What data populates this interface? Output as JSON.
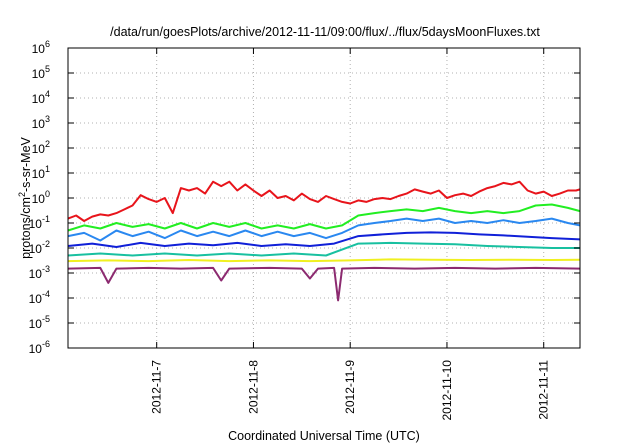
{
  "chart_data": {
    "type": "line",
    "title": "/data/run/goesPlots/archive/2012-11-11/09:00/flux/../flux/5daysMoonFluxes.txt",
    "xlabel": "Coordinated Universal Time (UTC)",
    "ylabel_base": "protons/cm",
    "ylabel_sup": "2",
    "ylabel_rest": "-s-sr-MeV",
    "y_scale": "log",
    "ylim": [
      1e-06,
      1000000.0
    ],
    "xlim": [
      "2012-11-06 02:00",
      "2012-11-11 09:00"
    ],
    "grid": true,
    "legend": "none",
    "x_ticks": [
      {
        "label": "2012-11-7",
        "date": "2012-11-07"
      },
      {
        "label": "2012-11-8",
        "date": "2012-11-08"
      },
      {
        "label": "2012-11-9",
        "date": "2012-11-09"
      },
      {
        "label": "2012-11-10",
        "date": "2012-11-10"
      },
      {
        "label": "2012-11-11",
        "date": "2012-11-11"
      }
    ],
    "y_ticks": [
      {
        "base": "10",
        "exp": "-6",
        "value": 1e-06
      },
      {
        "base": "10",
        "exp": "-5",
        "value": 1e-05
      },
      {
        "base": "10",
        "exp": "-4",
        "value": 0.0001
      },
      {
        "base": "10",
        "exp": "-3",
        "value": 0.001
      },
      {
        "base": "10",
        "exp": "-2",
        "value": 0.01
      },
      {
        "base": "10",
        "exp": "-1",
        "value": 0.1
      },
      {
        "base": "10",
        "exp": "0",
        "value": 1
      },
      {
        "base": "10",
        "exp": "1",
        "value": 10
      },
      {
        "base": "10",
        "exp": "2",
        "value": 100
      },
      {
        "base": "10",
        "exp": "3",
        "value": 1000
      },
      {
        "base": "10",
        "exp": "4",
        "value": 10000
      },
      {
        "base": "10",
        "exp": "5",
        "value": 100000
      },
      {
        "base": "10",
        "exp": "6",
        "value": 1000000
      }
    ],
    "series": [
      {
        "color": "#e8141b",
        "points": [
          [
            "2012-11-06 02:00",
            0.15
          ],
          [
            "2012-11-06 04:00",
            0.2
          ],
          [
            "2012-11-06 06:00",
            0.12
          ],
          [
            "2012-11-06 08:00",
            0.18
          ],
          [
            "2012-11-06 10:00",
            0.22
          ],
          [
            "2012-11-06 12:00",
            0.2
          ],
          [
            "2012-11-06 14:00",
            0.25
          ],
          [
            "2012-11-06 16:00",
            0.35
          ],
          [
            "2012-11-06 18:00",
            0.5
          ],
          [
            "2012-11-06 20:00",
            1.3
          ],
          [
            "2012-11-06 22:00",
            0.9
          ],
          [
            "2012-11-07 00:00",
            0.7
          ],
          [
            "2012-11-07 02:00",
            1.0
          ],
          [
            "2012-11-07 04:00",
            0.25
          ],
          [
            "2012-11-07 06:00",
            2.5
          ],
          [
            "2012-11-07 08:00",
            2.0
          ],
          [
            "2012-11-07 10:00",
            2.5
          ],
          [
            "2012-11-07 12:00",
            1.5
          ],
          [
            "2012-11-07 14:00",
            4.5
          ],
          [
            "2012-11-07 16:00",
            3.0
          ],
          [
            "2012-11-07 18:00",
            4.5
          ],
          [
            "2012-11-07 20:00",
            2.0
          ],
          [
            "2012-11-07 22:00",
            3.5
          ],
          [
            "2012-11-08 00:00",
            2.0
          ],
          [
            "2012-11-08 02:00",
            1.2
          ],
          [
            "2012-11-08 04:00",
            2.0
          ],
          [
            "2012-11-08 06:00",
            1.0
          ],
          [
            "2012-11-08 08:00",
            1.2
          ],
          [
            "2012-11-08 10:00",
            0.8
          ],
          [
            "2012-11-08 12:00",
            1.5
          ],
          [
            "2012-11-08 14:00",
            0.9
          ],
          [
            "2012-11-08 16:00",
            0.7
          ],
          [
            "2012-11-08 18:00",
            1.2
          ],
          [
            "2012-11-08 20:00",
            0.9
          ],
          [
            "2012-11-08 22:00",
            0.7
          ],
          [
            "2012-11-09 00:00",
            0.6
          ],
          [
            "2012-11-09 02:00",
            0.8
          ],
          [
            "2012-11-09 04:00",
            0.7
          ],
          [
            "2012-11-09 06:00",
            0.9
          ],
          [
            "2012-11-09 08:00",
            1.0
          ],
          [
            "2012-11-09 10:00",
            0.9
          ],
          [
            "2012-11-09 12:00",
            1.2
          ],
          [
            "2012-11-09 14:00",
            1.5
          ],
          [
            "2012-11-09 16:00",
            2.2
          ],
          [
            "2012-11-09 18:00",
            1.8
          ],
          [
            "2012-11-09 20:00",
            1.5
          ],
          [
            "2012-11-09 22:00",
            2.0
          ],
          [
            "2012-11-10 00:00",
            1.0
          ],
          [
            "2012-11-10 02:00",
            1.3
          ],
          [
            "2012-11-10 04:00",
            1.5
          ],
          [
            "2012-11-10 06:00",
            1.2
          ],
          [
            "2012-11-10 08:00",
            1.8
          ],
          [
            "2012-11-10 10:00",
            2.5
          ],
          [
            "2012-11-10 12:00",
            3.0
          ],
          [
            "2012-11-10 14:00",
            4.0
          ],
          [
            "2012-11-10 16:00",
            3.5
          ],
          [
            "2012-11-10 18:00",
            4.5
          ],
          [
            "2012-11-10 20:00",
            2.0
          ],
          [
            "2012-11-10 22:00",
            1.5
          ],
          [
            "2012-11-11 00:00",
            1.8
          ],
          [
            "2012-11-11 02:00",
            1.2
          ],
          [
            "2012-11-11 04:00",
            1.5
          ],
          [
            "2012-11-11 06:00",
            2.0
          ],
          [
            "2012-11-11 08:00",
            2.0
          ],
          [
            "2012-11-11 09:00",
            2.2
          ]
        ]
      },
      {
        "color": "#22ee22",
        "points": [
          [
            "2012-11-06 02:00",
            0.05
          ],
          [
            "2012-11-06 06:00",
            0.08
          ],
          [
            "2012-11-06 10:00",
            0.06
          ],
          [
            "2012-11-06 14:00",
            0.1
          ],
          [
            "2012-11-06 18:00",
            0.07
          ],
          [
            "2012-11-06 22:00",
            0.09
          ],
          [
            "2012-11-07 02:00",
            0.06
          ],
          [
            "2012-11-07 06:00",
            0.1
          ],
          [
            "2012-11-07 10:00",
            0.06
          ],
          [
            "2012-11-07 14:00",
            0.1
          ],
          [
            "2012-11-07 18:00",
            0.07
          ],
          [
            "2012-11-07 22:00",
            0.1
          ],
          [
            "2012-11-08 02:00",
            0.06
          ],
          [
            "2012-11-08 06:00",
            0.08
          ],
          [
            "2012-11-08 10:00",
            0.06
          ],
          [
            "2012-11-08 14:00",
            0.09
          ],
          [
            "2012-11-08 18:00",
            0.06
          ],
          [
            "2012-11-08 22:00",
            0.08
          ],
          [
            "2012-11-09 02:00",
            0.2
          ],
          [
            "2012-11-09 06:00",
            0.25
          ],
          [
            "2012-11-09 10:00",
            0.3
          ],
          [
            "2012-11-09 14:00",
            0.35
          ],
          [
            "2012-11-09 18:00",
            0.3
          ],
          [
            "2012-11-09 22:00",
            0.4
          ],
          [
            "2012-11-10 02:00",
            0.3
          ],
          [
            "2012-11-10 06:00",
            0.25
          ],
          [
            "2012-11-10 10:00",
            0.3
          ],
          [
            "2012-11-10 14:00",
            0.25
          ],
          [
            "2012-11-10 18:00",
            0.3
          ],
          [
            "2012-11-10 22:00",
            0.5
          ],
          [
            "2012-11-11 02:00",
            0.55
          ],
          [
            "2012-11-11 06:00",
            0.4
          ],
          [
            "2012-11-11 09:00",
            0.3
          ]
        ]
      },
      {
        "color": "#2a88f0",
        "points": [
          [
            "2012-11-06 02:00",
            0.03
          ],
          [
            "2012-11-06 06:00",
            0.04
          ],
          [
            "2012-11-06 10:00",
            0.02
          ],
          [
            "2012-11-06 14:00",
            0.05
          ],
          [
            "2012-11-06 18:00",
            0.03
          ],
          [
            "2012-11-06 22:00",
            0.045
          ],
          [
            "2012-11-07 02:00",
            0.025
          ],
          [
            "2012-11-07 06:00",
            0.05
          ],
          [
            "2012-11-07 10:00",
            0.03
          ],
          [
            "2012-11-07 14:00",
            0.045
          ],
          [
            "2012-11-07 18:00",
            0.03
          ],
          [
            "2012-11-07 22:00",
            0.05
          ],
          [
            "2012-11-08 02:00",
            0.03
          ],
          [
            "2012-11-08 06:00",
            0.045
          ],
          [
            "2012-11-08 10:00",
            0.03
          ],
          [
            "2012-11-08 14:00",
            0.04
          ],
          [
            "2012-11-08 18:00",
            0.025
          ],
          [
            "2012-11-08 22:00",
            0.04
          ],
          [
            "2012-11-09 02:00",
            0.08
          ],
          [
            "2012-11-09 06:00",
            0.1
          ],
          [
            "2012-11-09 10:00",
            0.12
          ],
          [
            "2012-11-09 14:00",
            0.15
          ],
          [
            "2012-11-09 18:00",
            0.12
          ],
          [
            "2012-11-09 22:00",
            0.15
          ],
          [
            "2012-11-10 02:00",
            0.1
          ],
          [
            "2012-11-10 06:00",
            0.12
          ],
          [
            "2012-11-10 10:00",
            0.1
          ],
          [
            "2012-11-10 14:00",
            0.13
          ],
          [
            "2012-11-10 18:00",
            0.1
          ],
          [
            "2012-11-10 22:00",
            0.12
          ],
          [
            "2012-11-11 02:00",
            0.15
          ],
          [
            "2012-11-11 06:00",
            0.1
          ],
          [
            "2012-11-11 09:00",
            0.08
          ]
        ]
      },
      {
        "color": "#1020d8",
        "points": [
          [
            "2012-11-06 02:00",
            0.012
          ],
          [
            "2012-11-06 08:00",
            0.015
          ],
          [
            "2012-11-06 14:00",
            0.011
          ],
          [
            "2012-11-06 20:00",
            0.016
          ],
          [
            "2012-11-07 02:00",
            0.012
          ],
          [
            "2012-11-07 08:00",
            0.015
          ],
          [
            "2012-11-07 14:00",
            0.013
          ],
          [
            "2012-11-07 20:00",
            0.016
          ],
          [
            "2012-11-08 02:00",
            0.012
          ],
          [
            "2012-11-08 08:00",
            0.014
          ],
          [
            "2012-11-08 14:00",
            0.012
          ],
          [
            "2012-11-08 20:00",
            0.015
          ],
          [
            "2012-11-09 02:00",
            0.03
          ],
          [
            "2012-11-09 08:00",
            0.035
          ],
          [
            "2012-11-09 14:00",
            0.04
          ],
          [
            "2012-11-09 20:00",
            0.042
          ],
          [
            "2012-11-10 02:00",
            0.04
          ],
          [
            "2012-11-10 08:00",
            0.035
          ],
          [
            "2012-11-10 14:00",
            0.032
          ],
          [
            "2012-11-10 20:00",
            0.028
          ],
          [
            "2012-11-11 02:00",
            0.025
          ],
          [
            "2012-11-11 09:00",
            0.022
          ]
        ]
      },
      {
        "color": "#18c0a0",
        "points": [
          [
            "2012-11-06 02:00",
            0.005
          ],
          [
            "2012-11-06 10:00",
            0.006
          ],
          [
            "2012-11-06 18:00",
            0.005
          ],
          [
            "2012-11-07 02:00",
            0.006
          ],
          [
            "2012-11-07 10:00",
            0.005
          ],
          [
            "2012-11-07 18:00",
            0.006
          ],
          [
            "2012-11-08 02:00",
            0.005
          ],
          [
            "2012-11-08 10:00",
            0.006
          ],
          [
            "2012-11-08 18:00",
            0.005
          ],
          [
            "2012-11-09 02:00",
            0.015
          ],
          [
            "2012-11-09 10:00",
            0.016
          ],
          [
            "2012-11-09 18:00",
            0.015
          ],
          [
            "2012-11-10 02:00",
            0.014
          ],
          [
            "2012-11-10 10:00",
            0.012
          ],
          [
            "2012-11-10 18:00",
            0.011
          ],
          [
            "2012-11-11 02:00",
            0.01
          ],
          [
            "2012-11-11 09:00",
            0.01
          ]
        ]
      },
      {
        "color": "#f0f020",
        "points": [
          [
            "2012-11-06 02:00",
            0.003
          ],
          [
            "2012-11-06 12:00",
            0.0032
          ],
          [
            "2012-11-06 22:00",
            0.003
          ],
          [
            "2012-11-07 08:00",
            0.0033
          ],
          [
            "2012-11-07 18:00",
            0.003
          ],
          [
            "2012-11-08 04:00",
            0.0032
          ],
          [
            "2012-11-08 14:00",
            0.003
          ],
          [
            "2012-11-09 00:00",
            0.0032
          ],
          [
            "2012-11-09 10:00",
            0.0035
          ],
          [
            "2012-11-09 20:00",
            0.0034
          ],
          [
            "2012-11-10 06:00",
            0.0033
          ],
          [
            "2012-11-10 16:00",
            0.0034
          ],
          [
            "2012-11-11 02:00",
            0.0033
          ],
          [
            "2012-11-11 09:00",
            0.0034
          ]
        ]
      },
      {
        "color": "#8c2a70",
        "points": [
          [
            "2012-11-06 02:00",
            0.0015
          ],
          [
            "2012-11-06 10:00",
            0.0016
          ],
          [
            "2012-11-06 12:00",
            0.0004
          ],
          [
            "2012-11-06 14:00",
            0.0015
          ],
          [
            "2012-11-06 22:00",
            0.0016
          ],
          [
            "2012-11-07 06:00",
            0.0015
          ],
          [
            "2012-11-07 14:00",
            0.0016
          ],
          [
            "2012-11-07 16:00",
            0.0005
          ],
          [
            "2012-11-07 18:00",
            0.0015
          ],
          [
            "2012-11-08 04:00",
            0.0016
          ],
          [
            "2012-11-08 12:00",
            0.0015
          ],
          [
            "2012-11-08 14:00",
            0.0006
          ],
          [
            "2012-11-08 16:00",
            0.0015
          ],
          [
            "2012-11-08 20:00",
            0.0016
          ],
          [
            "2012-11-08 21:00",
            8e-05
          ],
          [
            "2012-11-08 22:00",
            0.0015
          ],
          [
            "2012-11-09 06:00",
            0.0016
          ],
          [
            "2012-11-09 16:00",
            0.0015
          ],
          [
            "2012-11-10 02:00",
            0.0016
          ],
          [
            "2012-11-10 12:00",
            0.0015
          ],
          [
            "2012-11-10 22:00",
            0.0016
          ],
          [
            "2012-11-11 09:00",
            0.0015
          ]
        ]
      }
    ]
  }
}
